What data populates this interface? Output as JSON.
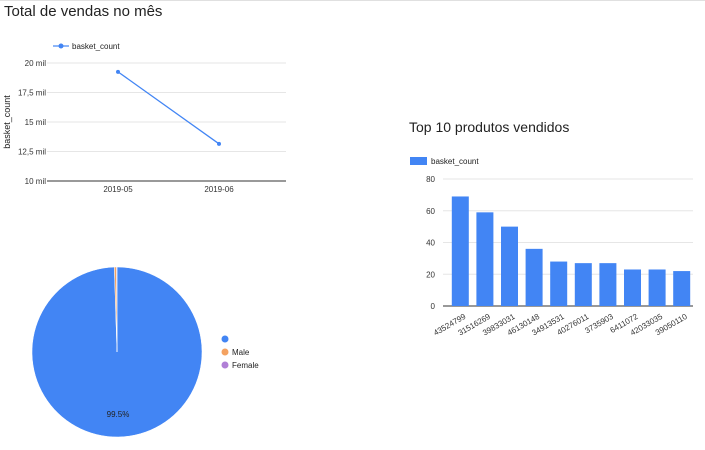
{
  "line_chart": {
    "title": "Total de vendas no mês",
    "legend_label": "basket_count",
    "y_tick_labels": [
      "10 mil",
      "12,5 mil",
      "15 mil",
      "17,5 mil",
      "20 mil"
    ],
    "color": "#4285f4"
  },
  "bar_chart": {
    "title": "Top 10 produtos vendidos",
    "legend_label": "basket_count",
    "color": "#4285f4"
  },
  "pie_chart": {
    "slice_label": "99.5%",
    "colors": [
      "#4285f4",
      "#f4a261",
      "#b07fd6"
    ]
  },
  "chart_data": [
    {
      "type": "line",
      "title": "Total de vendas no mês",
      "xlabel": "",
      "ylabel": "basket_count",
      "categories": [
        "2019-05",
        "2019-06"
      ],
      "series": [
        {
          "name": "basket_count",
          "values": [
            19250,
            13150
          ]
        }
      ],
      "ylim": [
        10000,
        20000
      ],
      "grid": true,
      "legend": "top"
    },
    {
      "type": "bar",
      "title": "Top 10 produtos vendidos",
      "categories": [
        "43524799",
        "31516269",
        "39833031",
        "46130148",
        "34913531",
        "40276011",
        "3735903",
        "6411072",
        "42033035",
        "39050110"
      ],
      "series": [
        {
          "name": "basket_count",
          "values": [
            69,
            59,
            50,
            36,
            28,
            27,
            27,
            23,
            23,
            22
          ]
        }
      ],
      "ylim": [
        0,
        80
      ],
      "y_ticks": [
        0,
        20,
        40,
        60,
        80
      ],
      "grid": true,
      "legend": "top-left"
    },
    {
      "type": "pie",
      "labels": [
        "",
        "Male",
        "Female"
      ],
      "values": [
        99.5,
        0.4,
        0.1
      ],
      "data_labels": [
        "99.5%"
      ],
      "legend": "right"
    }
  ]
}
